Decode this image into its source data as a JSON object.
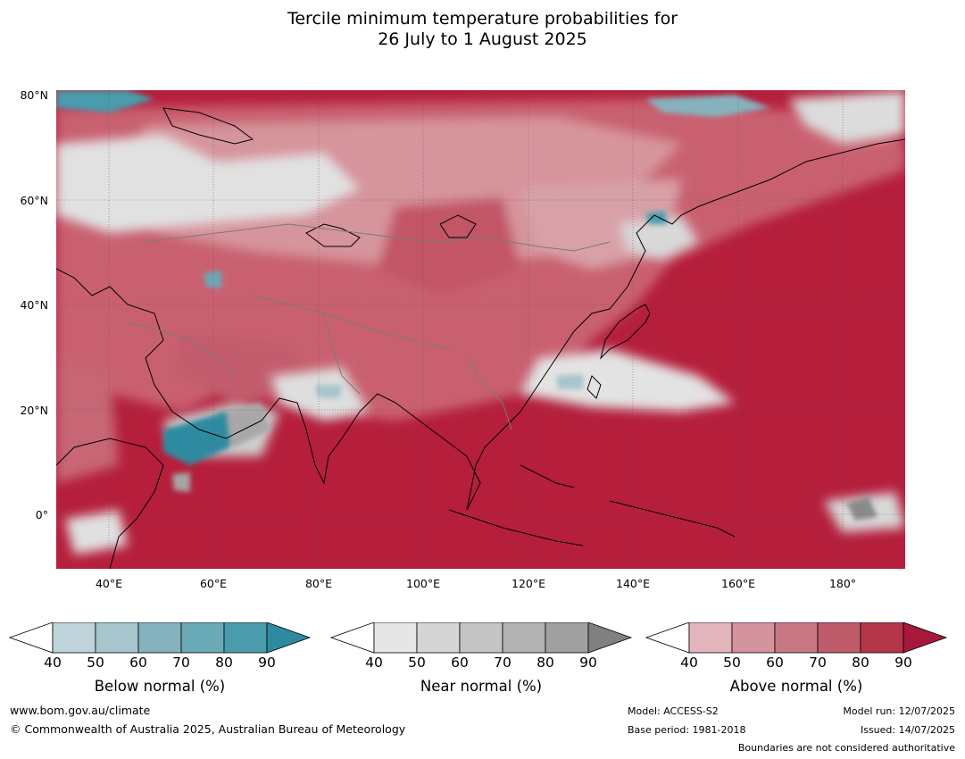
{
  "title": {
    "line1": "Tercile minimum temperature probabilities for",
    "line2": "26 July to 1 August 2025"
  },
  "axes": {
    "lat_labels": [
      "80°N",
      "60°N",
      "40°N",
      "20°N",
      "0°"
    ],
    "lon_labels": [
      "40°E",
      "60°E",
      "80°E",
      "100°E",
      "120°E",
      "140°E",
      "160°E",
      "180°"
    ]
  },
  "colorbars": [
    {
      "label": "Below normal (%)",
      "ticks": [
        "40",
        "50",
        "60",
        "70",
        "80",
        "90"
      ],
      "colors": [
        "#bed3da",
        "#a6c5cc",
        "#86b2bd",
        "#6aa9b6",
        "#4a9cad",
        "#2e8aa0"
      ]
    },
    {
      "label": "Near normal (%)",
      "ticks": [
        "40",
        "50",
        "60",
        "70",
        "80",
        "90"
      ],
      "colors": [
        "#e6e6e6",
        "#d5d5d5",
        "#c4c4c4",
        "#b2b2b2",
        "#a0a0a0",
        "#808080"
      ]
    },
    {
      "label": "Above normal (%)",
      "ticks": [
        "40",
        "50",
        "60",
        "70",
        "80",
        "90"
      ],
      "colors": [
        "#e2b5bd",
        "#d4939d",
        "#c97782",
        "#bf5c6b",
        "#b63649",
        "#a7183a"
      ]
    }
  ],
  "footer": {
    "website": "www.bom.gov.au/climate",
    "copyright": "© Commonwealth of Australia 2025, Australian Bureau of Meteorology",
    "model": "Model: ACCESS-S2",
    "base_period": "Base period: 1981-2018",
    "model_run": "Model run: 12/07/2025",
    "issued": "Issued: 14/07/2025",
    "disclaimer": "Boundaries are not considered authoritative"
  }
}
